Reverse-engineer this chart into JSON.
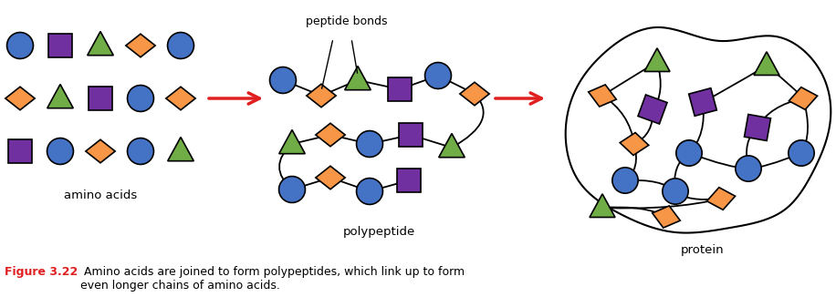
{
  "blue": "#4472C4",
  "orange": "#F79646",
  "green": "#70AD47",
  "purple": "#7030A0",
  "red_arrow": "#E02020",
  "black": "#000000",
  "white": "#FFFFFF",
  "title_bold": "Figure 3.22",
  "title_text": " Amino acids are joined to form polypeptides, which link up to form\neven longer chains of amino acids.",
  "label_aa": "amino acids",
  "label_poly": "polypeptide",
  "label_prot": "protein",
  "label_bonds": "peptide bonds",
  "fig_width": 9.16,
  "fig_height": 3.26,
  "dpi": 100
}
